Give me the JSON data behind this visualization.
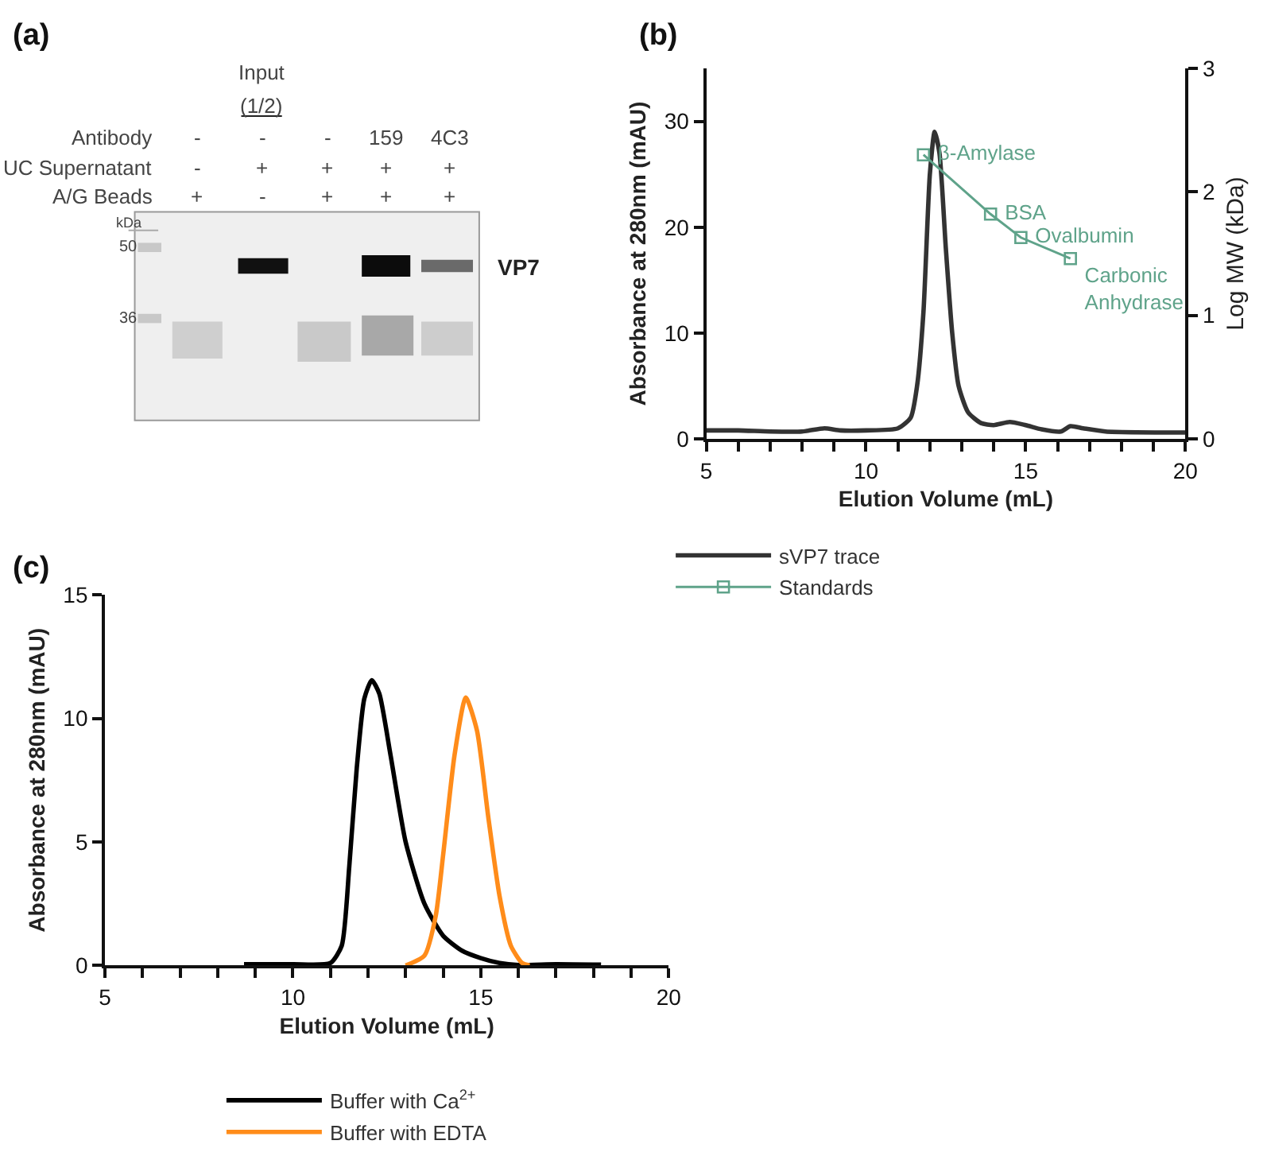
{
  "chart_data": [
    {
      "type": "other",
      "title": "(a)",
      "annotations": [
        "Input",
        "(1/2)",
        "Antibody",
        "UC Supernatant",
        "A/G Beads",
        "-",
        "-",
        "-",
        "159",
        "4C3",
        "-",
        "+",
        "+",
        "+",
        "+",
        "+",
        "-",
        "+",
        "+",
        "+",
        "kDa",
        "50",
        "36",
        "VP7"
      ]
    },
    {
      "type": "line",
      "title": "(b)",
      "xlabel": "Elution Volume (mL)",
      "ylabel": "Absorbance at 280nm (mAU)",
      "y2label": "Log MW (kDa)",
      "xlim": [
        5,
        20
      ],
      "xticks": [
        5,
        {
          "value": 6,
          "label": null
        },
        {
          "value": 7,
          "label": null
        },
        {
          "value": 8,
          "label": null
        },
        {
          "value": 9,
          "label": null
        },
        10,
        {
          "value": 11,
          "label": null
        },
        {
          "value": 12,
          "label": null
        },
        {
          "value": 13,
          "label": null
        },
        {
          "value": 14,
          "label": null
        },
        15,
        {
          "value": 16,
          "label": null
        },
        {
          "value": 17,
          "label": null
        },
        {
          "value": 18,
          "label": null
        },
        {
          "value": 19,
          "label": null
        },
        20
      ],
      "ylim": [
        0,
        35
      ],
      "yticks": [
        0,
        10,
        20,
        30
      ],
      "y2lim": [
        0,
        3
      ],
      "y2ticks": [
        0,
        1,
        2,
        3
      ],
      "legend": "bottom",
      "series": [
        {
          "name": "sVP7 trace",
          "color": "#333333",
          "marker": "none",
          "x": [
            5,
            6,
            7,
            8,
            8.7,
            9.2,
            10,
            11,
            11.4,
            11.6,
            11.8,
            12.0,
            12.15,
            12.3,
            12.5,
            12.7,
            12.9,
            13.2,
            13.6,
            14,
            14.5,
            15,
            15.5,
            16.1,
            16.4,
            16.8,
            17.5,
            20
          ],
          "values": [
            0.8,
            0.8,
            0.7,
            0.7,
            1.0,
            0.8,
            0.8,
            1.0,
            2,
            5,
            12,
            25,
            29,
            27,
            18,
            10,
            5,
            2.5,
            1.5,
            1.3,
            1.6,
            1.3,
            0.9,
            0.7,
            1.2,
            1.0,
            0.7,
            0.6
          ]
        },
        {
          "name": "Standards",
          "color": "#5fa38a",
          "marker": "square",
          "axis": "y2",
          "x": [
            11.8,
            13.9,
            14.85,
            16.4
          ],
          "values": [
            2.3,
            1.82,
            1.63,
            1.46
          ],
          "value_labels": [
            "β-Amylase",
            "BSA",
            "Ovalbumin",
            "Carbonic\nAnhydrase"
          ]
        }
      ]
    },
    {
      "type": "line",
      "title": "(c)",
      "xlabel": "Elution Volume (mL)",
      "ylabel": "Absorbance at 280nm (mAU)",
      "xlim": [
        5,
        20
      ],
      "xticks": [
        5,
        {
          "value": 6,
          "label": null
        },
        {
          "value": 7,
          "label": null
        },
        {
          "value": 8,
          "label": null
        },
        {
          "value": 9,
          "label": null
        },
        10,
        {
          "value": 11,
          "label": null
        },
        {
          "value": 12,
          "label": null
        },
        {
          "value": 13,
          "label": null
        },
        {
          "value": 14,
          "label": null
        },
        15,
        {
          "value": 16,
          "label": null
        },
        {
          "value": 17,
          "label": null
        },
        {
          "value": 18,
          "label": null
        },
        {
          "value": 19,
          "label": null
        },
        20
      ],
      "ylim": [
        0,
        15
      ],
      "yticks": [
        0,
        5,
        10,
        15
      ],
      "legend": "bottom",
      "series": [
        {
          "name": "Buffer with Ca$^{2+}$",
          "color": "#000000",
          "x": [
            8.7,
            10,
            11,
            11.3,
            11.5,
            11.7,
            11.9,
            12.1,
            12.3,
            12.6,
            13.0,
            13.5,
            14.0,
            14.5,
            15.0,
            15.5,
            16.0,
            17,
            18.2
          ],
          "values": [
            0.05,
            0.05,
            0.1,
            0.8,
            4,
            8,
            10.8,
            11.55,
            11.0,
            8.5,
            5.0,
            2.5,
            1.2,
            0.6,
            0.3,
            0.1,
            0.02,
            0.05,
            0.03
          ]
        },
        {
          "name": "Buffer with EDTA",
          "color": "#ff8c1a",
          "x": [
            13.0,
            13.5,
            13.8,
            14.0,
            14.3,
            14.6,
            14.9,
            15.2,
            15.5,
            15.8,
            16.1,
            16.3
          ],
          "values": [
            0,
            0.4,
            2.0,
            4.5,
            8.5,
            10.85,
            9.5,
            6,
            2.8,
            0.8,
            0.1,
            0
          ]
        }
      ]
    }
  ]
}
